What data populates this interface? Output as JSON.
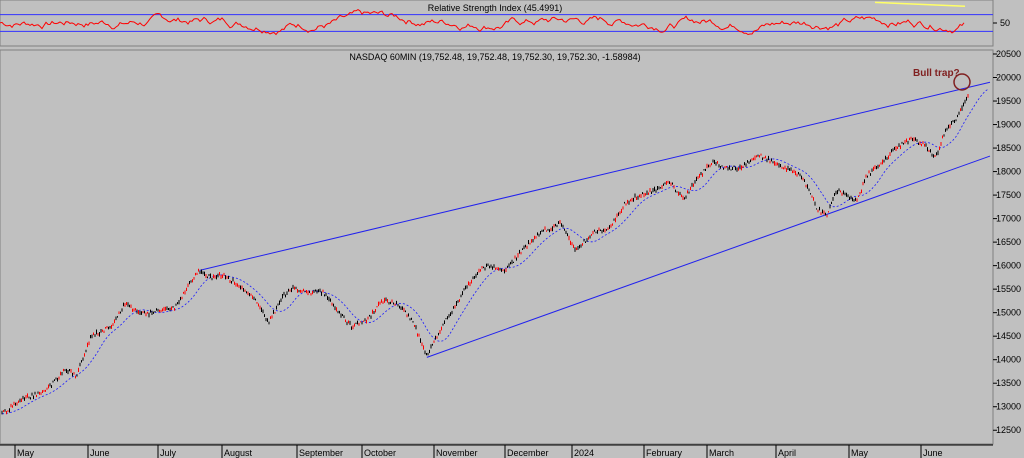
{
  "chart_data": [
    {
      "type": "line",
      "title": "Relative Strength Index (45.4991)",
      "series": [],
      "y_ticks": [
        50
      ],
      "ylim": [
        0,
        100
      ],
      "reference_levels": [
        70,
        30
      ],
      "colors": {
        "rsi": "#ff0000",
        "levels": "#3333ff",
        "trend": "#ffff66"
      }
    },
    {
      "type": "line",
      "title": "NASDAQ 60MIN (19,752.48, 19,752.48, 19,752.30, 19,752.30, -1.58984)",
      "annotation": "Bull trap?",
      "ylim": [
        12250,
        20500
      ],
      "y_ticks": [
        12500,
        13000,
        13500,
        14000,
        14500,
        15000,
        15500,
        16000,
        16500,
        17000,
        17500,
        18000,
        18500,
        19000,
        19500,
        20000,
        20500
      ],
      "x_ticks": [
        "May",
        "June",
        "July",
        "August",
        "September",
        "October",
        "November",
        "December",
        "2024",
        "February",
        "March",
        "April",
        "May",
        "June"
      ],
      "price_path": [
        {
          "t": 0,
          "y": 12850
        },
        {
          "t": 0.02,
          "y": 13150
        },
        {
          "t": 0.045,
          "y": 13350
        },
        {
          "t": 0.065,
          "y": 13800
        },
        {
          "t": 0.075,
          "y": 13650
        },
        {
          "t": 0.09,
          "y": 14500
        },
        {
          "t": 0.11,
          "y": 14700
        },
        {
          "t": 0.125,
          "y": 15200
        },
        {
          "t": 0.14,
          "y": 14950
        },
        {
          "t": 0.16,
          "y": 15050
        },
        {
          "t": 0.175,
          "y": 15100
        },
        {
          "t": 0.19,
          "y": 15600
        },
        {
          "t": 0.2,
          "y": 15900
        },
        {
          "t": 0.21,
          "y": 15750
        },
        {
          "t": 0.225,
          "y": 15800
        },
        {
          "t": 0.24,
          "y": 15550
        },
        {
          "t": 0.255,
          "y": 15300
        },
        {
          "t": 0.27,
          "y": 14800
        },
        {
          "t": 0.285,
          "y": 15350
        },
        {
          "t": 0.295,
          "y": 15550
        },
        {
          "t": 0.31,
          "y": 15400
        },
        {
          "t": 0.325,
          "y": 15450
        },
        {
          "t": 0.34,
          "y": 15000
        },
        {
          "t": 0.355,
          "y": 14700
        },
        {
          "t": 0.37,
          "y": 14850
        },
        {
          "t": 0.385,
          "y": 15250
        },
        {
          "t": 0.4,
          "y": 15200
        },
        {
          "t": 0.415,
          "y": 14850
        },
        {
          "t": 0.43,
          "y": 14100
        },
        {
          "t": 0.445,
          "y": 14700
        },
        {
          "t": 0.46,
          "y": 15200
        },
        {
          "t": 0.475,
          "y": 15700
        },
        {
          "t": 0.49,
          "y": 16000
        },
        {
          "t": 0.51,
          "y": 15900
        },
        {
          "t": 0.525,
          "y": 16300
        },
        {
          "t": 0.545,
          "y": 16700
        },
        {
          "t": 0.565,
          "y": 16900
        },
        {
          "t": 0.58,
          "y": 16350
        },
        {
          "t": 0.6,
          "y": 16700
        },
        {
          "t": 0.615,
          "y": 16800
        },
        {
          "t": 0.63,
          "y": 17300
        },
        {
          "t": 0.645,
          "y": 17500
        },
        {
          "t": 0.66,
          "y": 17600
        },
        {
          "t": 0.675,
          "y": 17800
        },
        {
          "t": 0.69,
          "y": 17400
        },
        {
          "t": 0.705,
          "y": 17900
        },
        {
          "t": 0.72,
          "y": 18200
        },
        {
          "t": 0.735,
          "y": 18050
        },
        {
          "t": 0.75,
          "y": 18100
        },
        {
          "t": 0.765,
          "y": 18350
        },
        {
          "t": 0.78,
          "y": 18200
        },
        {
          "t": 0.795,
          "y": 18050
        },
        {
          "t": 0.81,
          "y": 17900
        },
        {
          "t": 0.825,
          "y": 17200
        },
        {
          "t": 0.835,
          "y": 17050
        },
        {
          "t": 0.845,
          "y": 17600
        },
        {
          "t": 0.855,
          "y": 17500
        },
        {
          "t": 0.865,
          "y": 17350
        },
        {
          "t": 0.875,
          "y": 17900
        },
        {
          "t": 0.89,
          "y": 18200
        },
        {
          "t": 0.905,
          "y": 18500
        },
        {
          "t": 0.92,
          "y": 18700
        },
        {
          "t": 0.935,
          "y": 18550
        },
        {
          "t": 0.945,
          "y": 18300
        },
        {
          "t": 0.955,
          "y": 18900
        },
        {
          "t": 0.965,
          "y": 19100
        },
        {
          "t": 0.975,
          "y": 19500
        },
        {
          "t": 0.985,
          "y": 19900
        },
        {
          "t": 1.0,
          "y": 19750
        }
      ],
      "trendlines": [
        {
          "t0": 0.2,
          "y0": 15900,
          "t1": 1.0,
          "y1": 19900
        },
        {
          "t0": 0.43,
          "y0": 14050,
          "t1": 1.0,
          "y1": 18330
        }
      ],
      "colors": {
        "candle_up": "#000000",
        "candle_down": "#ff0000",
        "trend": "#2222ee",
        "ma": "#1a1aff",
        "annotation": "#802020"
      }
    }
  ]
}
